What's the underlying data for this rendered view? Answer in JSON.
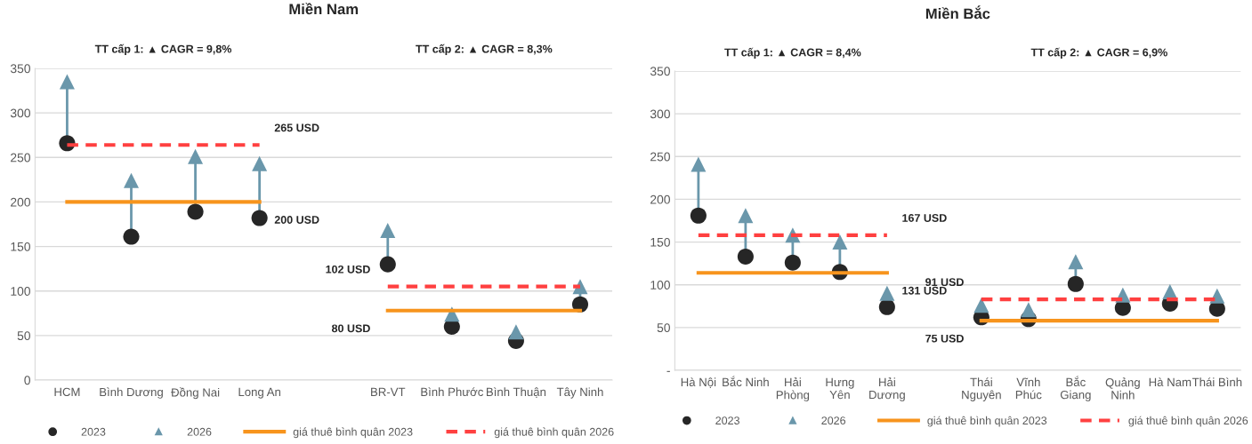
{
  "chart_data": [
    {
      "type": "scatter",
      "title": "Miền Nam",
      "categories": [
        "HCM",
        "Bình Dương",
        "Đồng Nai",
        "Long An",
        null,
        "BR-VT",
        "Bình Phước",
        "Bình Thuận",
        "Tây Ninh"
      ],
      "series": [
        {
          "name": "2023",
          "marker": "circle",
          "color": "#262626",
          "values": [
            266,
            161,
            189,
            182,
            null,
            130,
            60,
            44,
            85
          ]
        },
        {
          "name": "2026",
          "marker": "triangle",
          "color": "#6a97ab",
          "values": [
            335,
            224,
            251,
            243,
            null,
            168,
            74,
            54,
            105
          ]
        },
        {
          "name": "giá thuê bình quân 2023",
          "type": "line",
          "line_style": "solid",
          "color": "#f7941d",
          "values": [
            200,
            200,
            200,
            200,
            null,
            null,
            null,
            null,
            null
          ]
        },
        {
          "name": "giá thuê bình quân 2026",
          "type": "line",
          "line_style": "dashed",
          "color": "#ff4040",
          "values": [
            264,
            264,
            264,
            264,
            null,
            null,
            null,
            null,
            null
          ]
        },
        {
          "type": "line",
          "line_style": "solid",
          "color": "#f7941d",
          "values": [
            null,
            null,
            null,
            null,
            null,
            78,
            78,
            78,
            78
          ]
        },
        {
          "type": "line",
          "line_style": "dashed",
          "color": "#ff4040",
          "values": [
            null,
            null,
            null,
            null,
            null,
            105,
            105,
            105,
            105
          ]
        }
      ],
      "annotations": [
        "TT cấp 1: ▲ CAGR = 9,8%",
        "TT cấp 2: ▲ CAGR = 8,3%",
        "200 USD",
        "265 USD",
        "80 USD",
        "102 USD"
      ],
      "ylim": [
        0,
        350
      ],
      "yticks": [
        0,
        50,
        100,
        150,
        200,
        250,
        300,
        350
      ],
      "grid": "y",
      "legend": "bottom"
    },
    {
      "type": "scatter",
      "title": "Miền Bắc",
      "categories": [
        "Hà Nội",
        "Bắc Ninh",
        "Hải\nPhòng",
        "Hưng\nYên",
        "Hải\nDương",
        null,
        "Thái\nNguyên",
        "Vĩnh\nPhúc",
        "Bắc\nGiang",
        "Quảng\nNinh",
        "Hà Nam",
        "Thái Bình"
      ],
      "series": [
        {
          "name": "2023",
          "marker": "circle",
          "color": "#262626",
          "values": [
            181,
            133,
            126,
            115,
            74,
            null,
            62,
            60,
            101,
            73,
            78,
            72
          ]
        },
        {
          "name": "2026",
          "marker": "triangle",
          "color": "#6a97ab",
          "values": [
            241,
            181,
            158,
            150,
            90,
            null,
            76,
            71,
            127,
            88,
            92,
            87
          ]
        },
        {
          "name": "giá thuê bình quân 2023",
          "type": "line",
          "line_style": "solid",
          "color": "#f7941d",
          "values": [
            114,
            114,
            114,
            114,
            114,
            null,
            null,
            null,
            null,
            null,
            null,
            null
          ]
        },
        {
          "name": "giá thuê bình quân 2026",
          "type": "line",
          "line_style": "dashed",
          "color": "#ff4040",
          "values": [
            158,
            158,
            158,
            158,
            158,
            null,
            null,
            null,
            null,
            null,
            null,
            null
          ]
        },
        {
          "type": "line",
          "line_style": "solid",
          "color": "#f7941d",
          "values": [
            null,
            null,
            null,
            null,
            null,
            null,
            58,
            58,
            58,
            58,
            58,
            58
          ]
        },
        {
          "type": "line",
          "line_style": "dashed",
          "color": "#ff4040",
          "values": [
            null,
            null,
            null,
            null,
            null,
            null,
            83,
            83,
            83,
            83,
            83,
            83
          ]
        }
      ],
      "annotations": [
        "TT cấp 1: ▲ CAGR = 8,4%",
        "TT cấp 2: ▲ CAGR = 6,9%",
        "131 USD",
        "167 USD",
        "75 USD",
        "91 USD"
      ],
      "ylim": [
        0,
        350
      ],
      "yticks": [
        {
          "value": 0,
          "label": "-"
        },
        50,
        100,
        150,
        200,
        250,
        300,
        350
      ],
      "grid": "y",
      "legend": "bottom"
    }
  ]
}
